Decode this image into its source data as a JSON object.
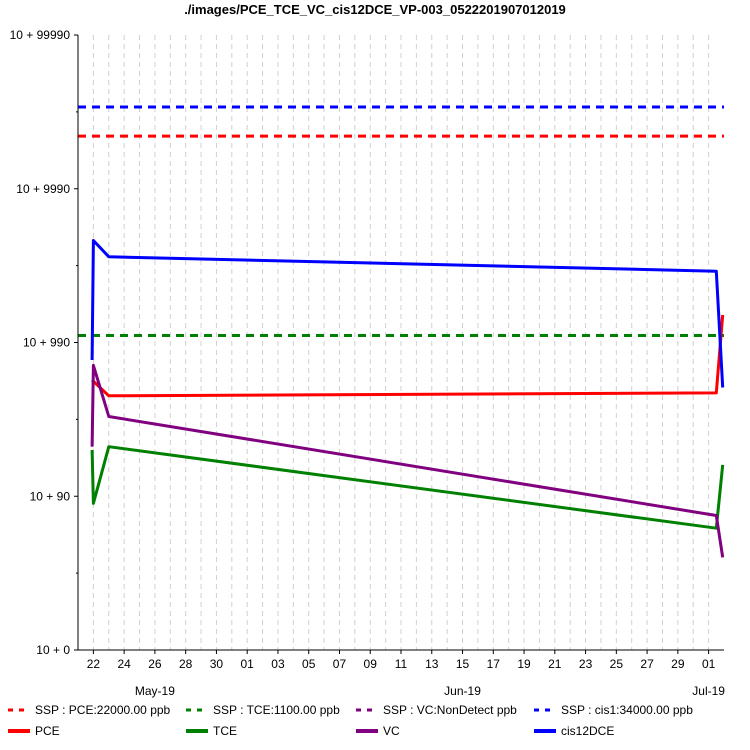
{
  "chart_data": {
    "type": "line",
    "title": "./images/PCE_TCE_VC_cis12DCE_VP-003_0522201907012019",
    "xlabel": "",
    "ylabel": "",
    "y_scale": "log",
    "y_ticks": [
      {
        "value": 0,
        "label": "10 + 0"
      },
      {
        "value": 90,
        "label": "10 + 90"
      },
      {
        "value": 990,
        "label": "10 + 990"
      },
      {
        "value": 9990,
        "label": "10 + 9990"
      },
      {
        "value": 99990,
        "label": "10 + 99990"
      }
    ],
    "ylim": [
      0,
      99990
    ],
    "xlim": [
      "2019-05-21",
      "2019-07-02"
    ],
    "x_ticks": [
      "22",
      "24",
      "26",
      "28",
      "30",
      "01",
      "03",
      "05",
      "07",
      "09",
      "11",
      "13",
      "15",
      "17",
      "19",
      "21",
      "23",
      "25",
      "27",
      "29",
      "01"
    ],
    "x_tick_dates": [
      "2019-05-22",
      "2019-05-24",
      "2019-05-26",
      "2019-05-28",
      "2019-05-30",
      "2019-06-01",
      "2019-06-03",
      "2019-06-05",
      "2019-06-07",
      "2019-06-09",
      "2019-06-11",
      "2019-06-13",
      "2019-06-15",
      "2019-06-17",
      "2019-06-19",
      "2019-06-21",
      "2019-06-23",
      "2019-06-25",
      "2019-06-27",
      "2019-06-29",
      "2019-07-01"
    ],
    "month_labels": [
      {
        "label": "May-19",
        "date": "2019-05-26"
      },
      {
        "label": "Jun-19",
        "date": "2019-06-15"
      },
      {
        "label": "Jul-19",
        "date": "2019-07-01"
      }
    ],
    "grid": true,
    "legend_position": "bottom",
    "ssp_lines": [
      {
        "name": "SSP : PCE:22000.00 ppb",
        "value": 22000,
        "color": "#ff0000"
      },
      {
        "name": "SSP : TCE:1100.00 ppb",
        "value": 1100,
        "color": "#008000"
      },
      {
        "name": "SSP : VC:NonDetect ppb",
        "value": null,
        "color": "#800080"
      },
      {
        "name": "SSP : cis1:34000.00 ppb",
        "value": 34000,
        "color": "#0000ff"
      }
    ],
    "series": [
      {
        "name": "PCE",
        "color": "#ff0000",
        "points": [
          [
            "2019-05-21T22:00",
            560
          ],
          [
            "2019-05-23",
            440
          ],
          [
            "2019-07-01T12:00",
            460
          ],
          [
            "2019-07-01T22:00",
            1500
          ]
        ]
      },
      {
        "name": "TCE",
        "color": "#008000",
        "points": [
          [
            "2019-05-21T22:00",
            190
          ],
          [
            "2019-05-22",
            80
          ],
          [
            "2019-05-23",
            200
          ],
          [
            "2019-07-01T12:00",
            52
          ],
          [
            "2019-07-01T22:00",
            150
          ]
        ]
      },
      {
        "name": "VC",
        "color": "#800080",
        "points": [
          [
            "2019-05-21T22:00",
            200
          ],
          [
            "2019-05-22",
            700
          ],
          [
            "2019-05-23",
            320
          ],
          [
            "2019-07-01T12:00",
            65
          ],
          [
            "2019-07-01T22:00",
            30
          ]
        ]
      },
      {
        "name": "cis12DCE",
        "color": "#0000ff",
        "points": [
          [
            "2019-05-21T22:00",
            760
          ],
          [
            "2019-05-22",
            4600
          ],
          [
            "2019-05-23",
            3600
          ],
          [
            "2019-07-01T12:00",
            2900
          ],
          [
            "2019-07-01T22:00",
            500
          ]
        ]
      }
    ]
  }
}
